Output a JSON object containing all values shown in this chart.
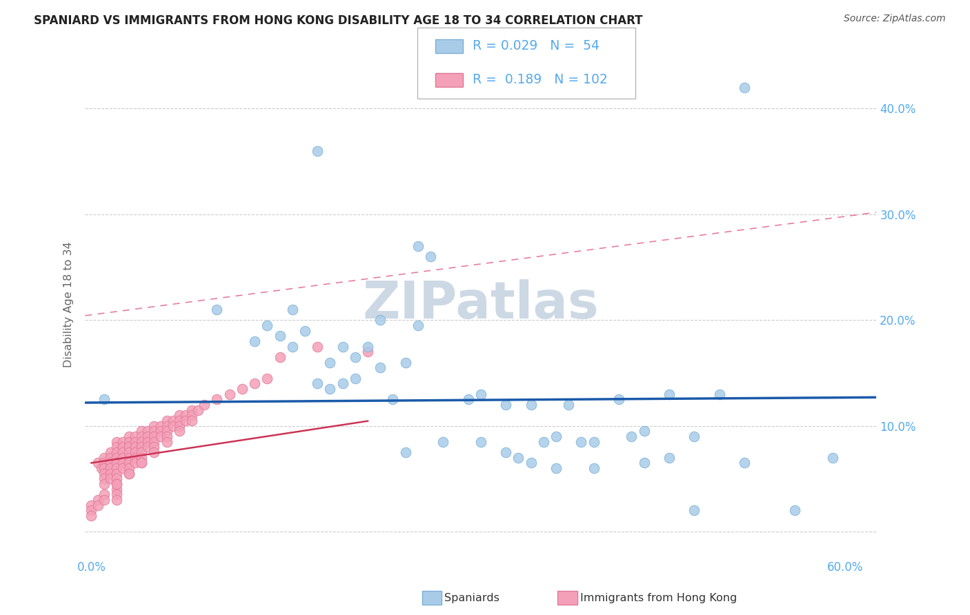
{
  "title": "SPANIARD VS IMMIGRANTS FROM HONG KONG DISABILITY AGE 18 TO 34 CORRELATION CHART",
  "source": "Source: ZipAtlas.com",
  "ylabel": "Disability Age 18 to 34",
  "xlim_min": -0.005,
  "xlim_max": 0.625,
  "ylim_min": -0.025,
  "ylim_max": 0.455,
  "xticks": [
    0.0,
    0.1,
    0.2,
    0.3,
    0.4,
    0.5,
    0.6
  ],
  "yticks": [
    0.0,
    0.1,
    0.2,
    0.3,
    0.4
  ],
  "ytick_labels_right": [
    "",
    "10.0%",
    "20.0%",
    "30.0%",
    "40.0%"
  ],
  "xtick_labels": [
    "0.0%",
    "",
    "",
    "",
    "",
    "",
    "60.0%"
  ],
  "grid_color": "#cccccc",
  "background_color": "#ffffff",
  "blue_color": "#a8cce8",
  "blue_edge": "#7ab0d8",
  "pink_color": "#f4a0b8",
  "pink_edge": "#e07898",
  "blue_line_color": "#1a5aaa",
  "pink_dashed_color": "#e05080",
  "pink_solid_color": "#cc3355",
  "watermark_color": "#cdd8e5",
  "tick_color": "#55aaee",
  "R_blue": 0.029,
  "N_blue": 54,
  "R_pink": 0.189,
  "N_pink": 102,
  "blue_intercept": 0.122,
  "blue_slope": 0.008,
  "pink_dashed_intercept": 0.205,
  "pink_dashed_slope": 0.155,
  "pink_solid_intercept": 0.065,
  "pink_solid_slope": 0.18,
  "spaniards_x": [
    0.52,
    0.18,
    0.26,
    0.1,
    0.14,
    0.15,
    0.16,
    0.17,
    0.13,
    0.2,
    0.19,
    0.21,
    0.23,
    0.25,
    0.22,
    0.24,
    0.2,
    0.18,
    0.21,
    0.27,
    0.23,
    0.26,
    0.19,
    0.16,
    0.3,
    0.35,
    0.33,
    0.31,
    0.38,
    0.42,
    0.46,
    0.5,
    0.36,
    0.39,
    0.37,
    0.4,
    0.43,
    0.44,
    0.48,
    0.31,
    0.28,
    0.25,
    0.33,
    0.34,
    0.35,
    0.37,
    0.4,
    0.44,
    0.46,
    0.48,
    0.52,
    0.56,
    0.59,
    0.01
  ],
  "spaniards_y": [
    0.42,
    0.36,
    0.27,
    0.21,
    0.195,
    0.185,
    0.21,
    0.19,
    0.18,
    0.175,
    0.16,
    0.165,
    0.2,
    0.16,
    0.175,
    0.125,
    0.14,
    0.14,
    0.145,
    0.26,
    0.155,
    0.195,
    0.135,
    0.175,
    0.125,
    0.12,
    0.12,
    0.13,
    0.12,
    0.125,
    0.13,
    0.13,
    0.085,
    0.085,
    0.09,
    0.085,
    0.09,
    0.095,
    0.09,
    0.085,
    0.085,
    0.075,
    0.075,
    0.07,
    0.065,
    0.06,
    0.06,
    0.065,
    0.07,
    0.02,
    0.065,
    0.02,
    0.07,
    0.125
  ],
  "hk_x": [
    0.005,
    0.008,
    0.01,
    0.01,
    0.01,
    0.01,
    0.01,
    0.01,
    0.015,
    0.015,
    0.015,
    0.015,
    0.015,
    0.015,
    0.02,
    0.02,
    0.02,
    0.02,
    0.02,
    0.02,
    0.02,
    0.02,
    0.02,
    0.02,
    0.02,
    0.02,
    0.025,
    0.025,
    0.025,
    0.025,
    0.025,
    0.025,
    0.03,
    0.03,
    0.03,
    0.03,
    0.03,
    0.03,
    0.03,
    0.03,
    0.035,
    0.035,
    0.035,
    0.035,
    0.035,
    0.035,
    0.04,
    0.04,
    0.04,
    0.04,
    0.04,
    0.04,
    0.04,
    0.045,
    0.045,
    0.045,
    0.045,
    0.05,
    0.05,
    0.05,
    0.05,
    0.05,
    0.055,
    0.055,
    0.055,
    0.06,
    0.06,
    0.06,
    0.06,
    0.065,
    0.065,
    0.07,
    0.07,
    0.07,
    0.075,
    0.075,
    0.08,
    0.08,
    0.085,
    0.09,
    0.1,
    0.11,
    0.12,
    0.13,
    0.14,
    0.0,
    0.0,
    0.0,
    0.005,
    0.005,
    0.01,
    0.01,
    0.02,
    0.03,
    0.04,
    0.05,
    0.06,
    0.07,
    0.08,
    0.15,
    0.18,
    0.22
  ],
  "hk_y": [
    0.065,
    0.06,
    0.07,
    0.065,
    0.06,
    0.055,
    0.05,
    0.045,
    0.075,
    0.07,
    0.065,
    0.06,
    0.055,
    0.05,
    0.085,
    0.08,
    0.075,
    0.07,
    0.065,
    0.06,
    0.055,
    0.05,
    0.045,
    0.04,
    0.035,
    0.03,
    0.085,
    0.08,
    0.075,
    0.07,
    0.065,
    0.06,
    0.09,
    0.085,
    0.08,
    0.075,
    0.07,
    0.065,
    0.06,
    0.055,
    0.09,
    0.085,
    0.08,
    0.075,
    0.07,
    0.065,
    0.095,
    0.09,
    0.085,
    0.08,
    0.075,
    0.07,
    0.065,
    0.095,
    0.09,
    0.085,
    0.08,
    0.1,
    0.095,
    0.09,
    0.085,
    0.08,
    0.1,
    0.095,
    0.09,
    0.105,
    0.1,
    0.095,
    0.09,
    0.105,
    0.1,
    0.11,
    0.105,
    0.1,
    0.11,
    0.105,
    0.115,
    0.11,
    0.115,
    0.12,
    0.125,
    0.13,
    0.135,
    0.14,
    0.145,
    0.025,
    0.02,
    0.015,
    0.03,
    0.025,
    0.035,
    0.03,
    0.045,
    0.055,
    0.065,
    0.075,
    0.085,
    0.095,
    0.105,
    0.165,
    0.175,
    0.17
  ]
}
